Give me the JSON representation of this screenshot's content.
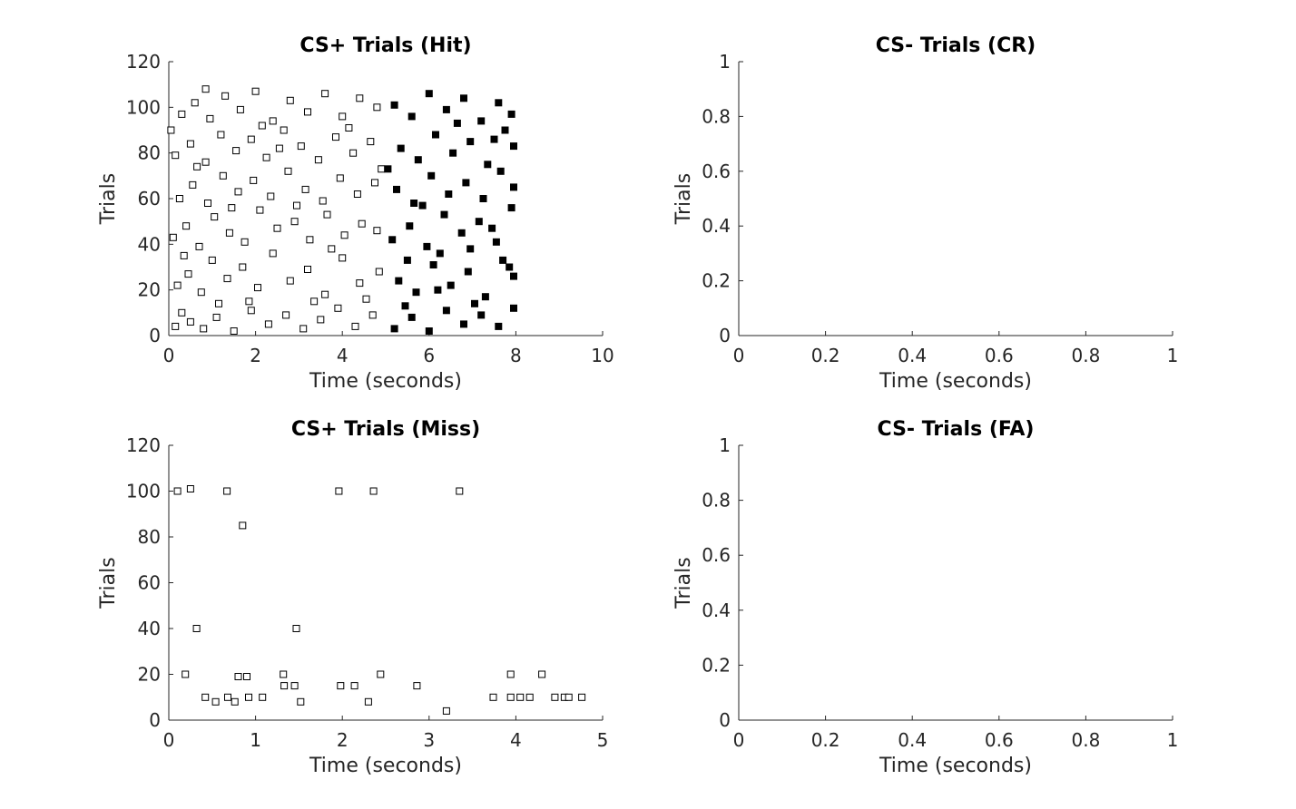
{
  "chart_data": [
    {
      "type": "scatter",
      "title": "CS+ Trials (Hit)",
      "xlabel": "Time (seconds)",
      "ylabel": "Trials",
      "xlim": [
        0,
        10
      ],
      "ylim": [
        0,
        120
      ],
      "xticks": [
        "0",
        "2",
        "4",
        "6",
        "8",
        "10"
      ],
      "yticks": [
        "0",
        "20",
        "40",
        "60",
        "80",
        "100",
        "120"
      ],
      "grid": false,
      "legend": "none",
      "series": [
        {
          "marker": "open-square",
          "color": "#000000",
          "points": [
            [
              0.15,
              4
            ],
            [
              0.3,
              10
            ],
            [
              0.5,
              6
            ],
            [
              0.8,
              3
            ],
            [
              1.1,
              8
            ],
            [
              1.5,
              2
            ],
            [
              1.9,
              11
            ],
            [
              2.3,
              5
            ],
            [
              2.7,
              9
            ],
            [
              3.1,
              3
            ],
            [
              3.5,
              7
            ],
            [
              3.9,
              12
            ],
            [
              4.3,
              4
            ],
            [
              4.7,
              9
            ],
            [
              0.2,
              22
            ],
            [
              0.45,
              27
            ],
            [
              0.75,
              19
            ],
            [
              1.0,
              33
            ],
            [
              1.35,
              25
            ],
            [
              1.7,
              30
            ],
            [
              2.05,
              21
            ],
            [
              2.4,
              36
            ],
            [
              2.8,
              24
            ],
            [
              3.2,
              29
            ],
            [
              3.6,
              18
            ],
            [
              4.0,
              34
            ],
            [
              4.4,
              23
            ],
            [
              4.85,
              28
            ],
            [
              0.1,
              43
            ],
            [
              0.4,
              48
            ],
            [
              0.7,
              39
            ],
            [
              1.05,
              52
            ],
            [
              1.4,
              45
            ],
            [
              1.75,
              41
            ],
            [
              2.1,
              55
            ],
            [
              2.5,
              47
            ],
            [
              2.9,
              50
            ],
            [
              3.25,
              42
            ],
            [
              3.65,
              53
            ],
            [
              4.05,
              44
            ],
            [
              4.45,
              49
            ],
            [
              4.8,
              46
            ],
            [
              0.25,
              60
            ],
            [
              0.55,
              66
            ],
            [
              0.9,
              58
            ],
            [
              1.25,
              70
            ],
            [
              1.6,
              63
            ],
            [
              1.95,
              68
            ],
            [
              2.35,
              61
            ],
            [
              2.75,
              72
            ],
            [
              3.15,
              64
            ],
            [
              3.55,
              59
            ],
            [
              3.95,
              69
            ],
            [
              4.35,
              62
            ],
            [
              4.75,
              67
            ],
            [
              0.15,
              79
            ],
            [
              0.5,
              84
            ],
            [
              0.85,
              76
            ],
            [
              1.2,
              88
            ],
            [
              1.55,
              81
            ],
            [
              1.9,
              86
            ],
            [
              2.25,
              78
            ],
            [
              2.65,
              90
            ],
            [
              3.05,
              83
            ],
            [
              3.45,
              77
            ],
            [
              3.85,
              87
            ],
            [
              4.25,
              80
            ],
            [
              4.65,
              85
            ],
            [
              0.3,
              97
            ],
            [
              0.6,
              102
            ],
            [
              0.95,
              95
            ],
            [
              1.3,
              105
            ],
            [
              1.65,
              99
            ],
            [
              2.0,
              107
            ],
            [
              2.4,
              94
            ],
            [
              2.8,
              103
            ],
            [
              3.2,
              98
            ],
            [
              3.6,
              106
            ],
            [
              4.0,
              96
            ],
            [
              4.4,
              104
            ],
            [
              4.8,
              100
            ],
            [
              0.35,
              35
            ],
            [
              1.85,
              15
            ],
            [
              3.35,
              15
            ],
            [
              2.15,
              92
            ],
            [
              0.65,
              74
            ],
            [
              4.55,
              16
            ],
            [
              1.45,
              56
            ],
            [
              3.75,
              38
            ],
            [
              2.55,
              82
            ],
            [
              0.05,
              90
            ],
            [
              4.9,
              73
            ],
            [
              1.15,
              14
            ],
            [
              2.95,
              57
            ],
            [
              4.15,
              91
            ],
            [
              0.85,
              108
            ]
          ]
        },
        {
          "marker": "filled-square",
          "color": "#000000",
          "points": [
            [
              5.2,
              3
            ],
            [
              5.6,
              8
            ],
            [
              6.0,
              2
            ],
            [
              6.4,
              11
            ],
            [
              6.8,
              5
            ],
            [
              7.2,
              9
            ],
            [
              7.6,
              4
            ],
            [
              7.95,
              12
            ],
            [
              5.3,
              24
            ],
            [
              5.7,
              19
            ],
            [
              6.1,
              31
            ],
            [
              6.5,
              22
            ],
            [
              6.9,
              28
            ],
            [
              7.3,
              17
            ],
            [
              7.7,
              33
            ],
            [
              7.95,
              26
            ],
            [
              5.15,
              42
            ],
            [
              5.55,
              48
            ],
            [
              5.95,
              39
            ],
            [
              6.35,
              53
            ],
            [
              6.75,
              45
            ],
            [
              7.15,
              50
            ],
            [
              7.55,
              41
            ],
            [
              7.9,
              56
            ],
            [
              5.25,
              64
            ],
            [
              5.65,
              58
            ],
            [
              6.05,
              70
            ],
            [
              6.45,
              62
            ],
            [
              6.85,
              67
            ],
            [
              7.25,
              60
            ],
            [
              7.65,
              72
            ],
            [
              7.95,
              65
            ],
            [
              5.35,
              82
            ],
            [
              5.75,
              77
            ],
            [
              6.15,
              88
            ],
            [
              6.55,
              80
            ],
            [
              6.95,
              85
            ],
            [
              7.35,
              75
            ],
            [
              7.75,
              90
            ],
            [
              7.95,
              83
            ],
            [
              5.2,
              101
            ],
            [
              5.6,
              96
            ],
            [
              6.0,
              106
            ],
            [
              6.4,
              99
            ],
            [
              6.8,
              104
            ],
            [
              7.2,
              94
            ],
            [
              7.6,
              102
            ],
            [
              7.9,
              97
            ],
            [
              5.45,
              13
            ],
            [
              6.25,
              36
            ],
            [
              7.05,
              14
            ],
            [
              7.45,
              47
            ],
            [
              5.85,
              57
            ],
            [
              6.65,
              93
            ],
            [
              7.85,
              30
            ],
            [
              5.05,
              73
            ],
            [
              6.95,
              38
            ],
            [
              7.5,
              86
            ],
            [
              6.2,
              20
            ],
            [
              5.5,
              33
            ]
          ]
        }
      ]
    },
    {
      "type": "scatter",
      "title": "CS- Trials (CR)",
      "xlabel": "Time (seconds)",
      "ylabel": "Trials",
      "xlim": [
        0,
        1
      ],
      "ylim": [
        0,
        1
      ],
      "xticks": [
        "0",
        "0.2",
        "0.4",
        "0.6",
        "0.8",
        "1"
      ],
      "yticks": [
        "0",
        "0.2",
        "0.4",
        "0.6",
        "0.8",
        "1"
      ],
      "grid": false,
      "legend": "none",
      "series": []
    },
    {
      "type": "scatter",
      "title": "CS+ Trials (Miss)",
      "xlabel": "Time (seconds)",
      "ylabel": "Trials",
      "xlim": [
        0,
        5
      ],
      "ylim": [
        0,
        120
      ],
      "xticks": [
        "0",
        "1",
        "2",
        "3",
        "4",
        "5"
      ],
      "yticks": [
        "0",
        "20",
        "40",
        "60",
        "80",
        "100",
        "120"
      ],
      "grid": false,
      "legend": "none",
      "series": [
        {
          "marker": "open-square",
          "color": "#000000",
          "points": [
            [
              0.1,
              100
            ],
            [
              0.25,
              101
            ],
            [
              0.67,
              100
            ],
            [
              1.96,
              100
            ],
            [
              2.36,
              100
            ],
            [
              3.35,
              100
            ],
            [
              0.85,
              85
            ],
            [
              0.32,
              40
            ],
            [
              1.47,
              40
            ],
            [
              0.19,
              20
            ],
            [
              0.8,
              19
            ],
            [
              0.9,
              19
            ],
            [
              1.32,
              20
            ],
            [
              2.44,
              20
            ],
            [
              3.94,
              20
            ],
            [
              4.3,
              20
            ],
            [
              1.33,
              15
            ],
            [
              1.45,
              15
            ],
            [
              1.98,
              15
            ],
            [
              2.14,
              15
            ],
            [
              2.86,
              15
            ],
            [
              0.42,
              10
            ],
            [
              0.68,
              10
            ],
            [
              0.92,
              10
            ],
            [
              1.08,
              10
            ],
            [
              3.74,
              10
            ],
            [
              3.94,
              10
            ],
            [
              4.05,
              10
            ],
            [
              4.16,
              10
            ],
            [
              4.45,
              10
            ],
            [
              4.56,
              10
            ],
            [
              4.61,
              10
            ],
            [
              4.76,
              10
            ],
            [
              0.54,
              8
            ],
            [
              0.76,
              8
            ],
            [
              1.52,
              8
            ],
            [
              2.3,
              8
            ],
            [
              3.2,
              4
            ]
          ]
        }
      ]
    },
    {
      "type": "scatter",
      "title": "CS- Trials (FA)",
      "xlabel": "Time (seconds)",
      "ylabel": "Trials",
      "xlim": [
        0,
        1
      ],
      "ylim": [
        0,
        1
      ],
      "xticks": [
        "0",
        "0.2",
        "0.4",
        "0.6",
        "0.8",
        "1"
      ],
      "yticks": [
        "0",
        "0.2",
        "0.4",
        "0.6",
        "0.8",
        "1"
      ],
      "grid": false,
      "legend": "none",
      "series": []
    }
  ]
}
